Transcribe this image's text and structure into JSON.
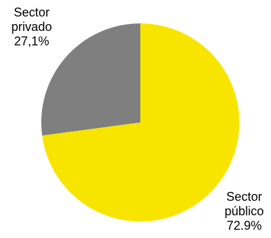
{
  "chart_data": {
    "type": "pie",
    "slices": [
      {
        "label_lines": [
          "Sector",
          "público",
          "72.9%"
        ],
        "value": 72.9,
        "color": "#F7E500"
      },
      {
        "label_lines": [
          "Sector",
          "privado",
          "27,1%"
        ],
        "value": 27.1,
        "color": "#7F7F7F"
      }
    ],
    "start_angle_deg": 0,
    "direction": "clockwise"
  }
}
